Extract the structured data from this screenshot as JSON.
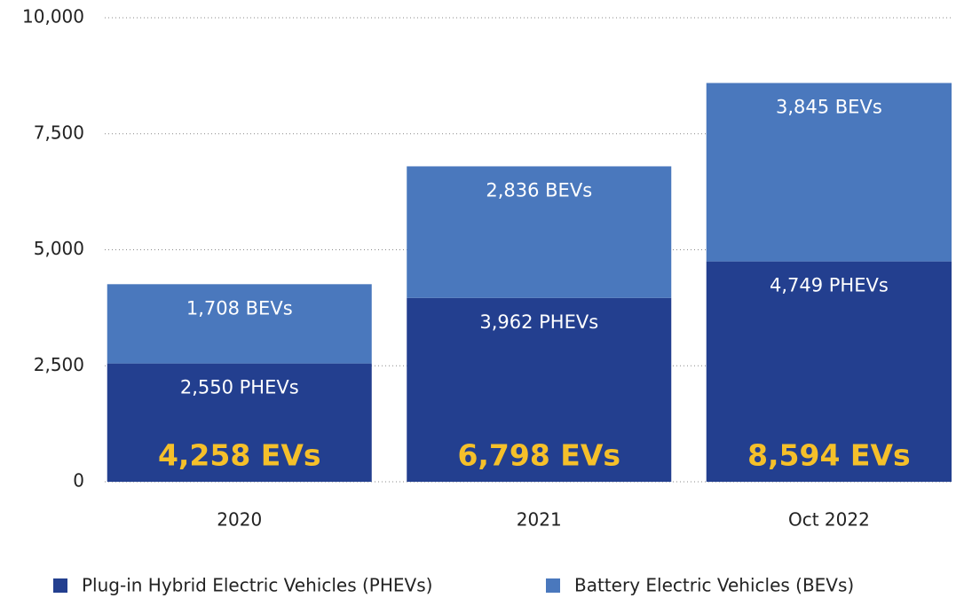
{
  "chart_data": {
    "type": "stacked_bar",
    "categories": [
      "2020",
      "2021",
      "Oct 2022"
    ],
    "series": [
      {
        "name": "Plug-in Hybrid Electric Vehicles (PHEVs)",
        "color": "#233f8f",
        "values": [
          2550,
          3962,
          4749
        ],
        "value_labels": [
          "2,550 PHEVs",
          "3,962 PHEVs",
          "4,749 PHEVs"
        ]
      },
      {
        "name": "Battery Electric Vehicles (BEVs)",
        "color": "#4a78bd",
        "values": [
          1708,
          2836,
          3845
        ],
        "value_labels": [
          "1,708 BEVs",
          "2,836 BEVs",
          "3,845 BEVs"
        ]
      }
    ],
    "annotations": [
      "4,258 EVs",
      "6,798 EVs",
      "8,594 EVs"
    ],
    "annotation_color": "#f5c02a",
    "ylim": [
      0,
      10000
    ],
    "yticks": [
      {
        "value": 0,
        "label": "0"
      },
      {
        "value": 2500,
        "label": "2,500"
      },
      {
        "value": 5000,
        "label": "5,000"
      },
      {
        "value": 7500,
        "label": "7,500"
      },
      {
        "value": 10000,
        "label": "10,000"
      }
    ],
    "grid": true,
    "legend": "bottom"
  }
}
